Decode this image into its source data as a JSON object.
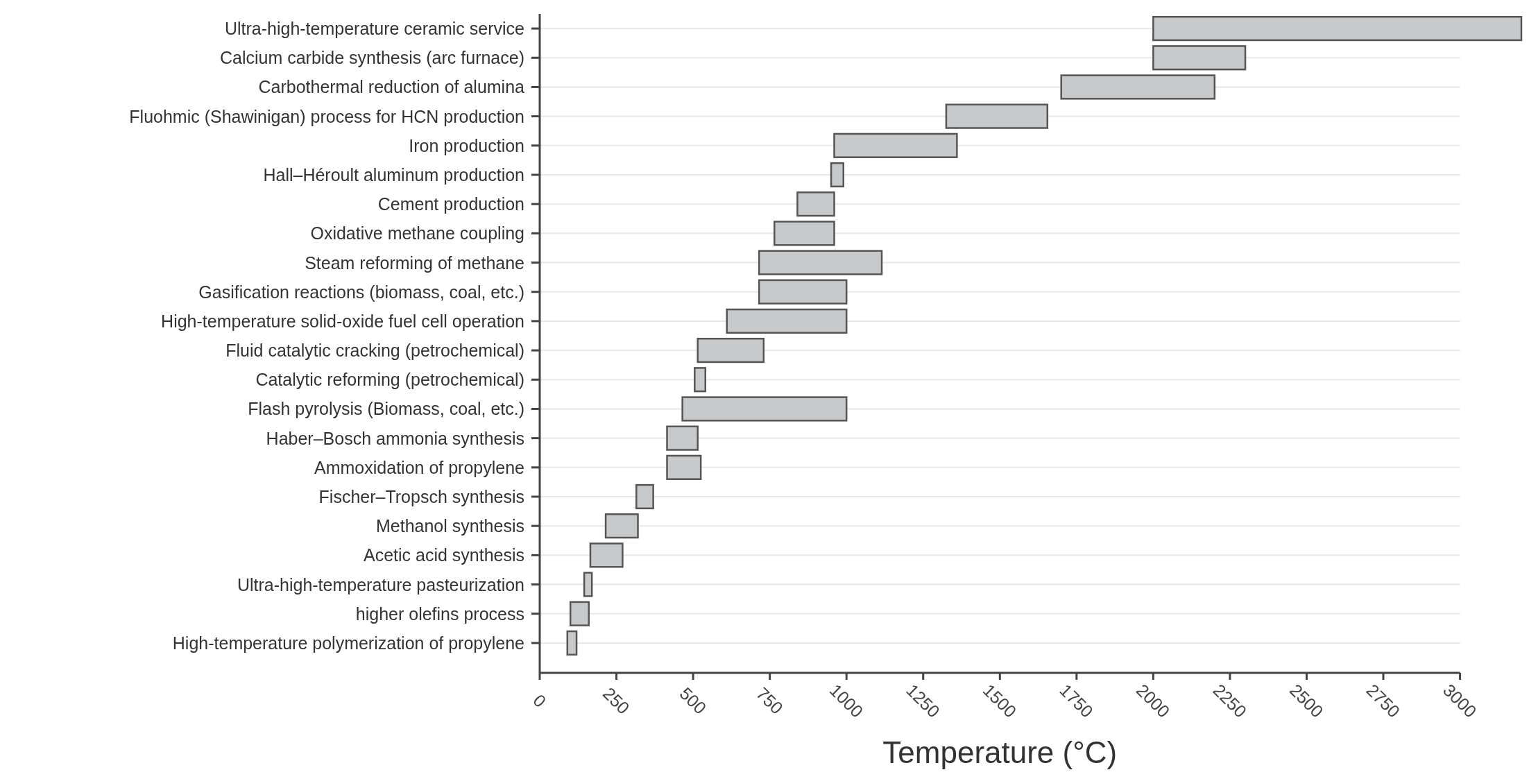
{
  "chart_data": {
    "type": "bar",
    "orientation": "horizontal",
    "xlabel": "Temperature (°C)",
    "categories": [
      "Ultra-high-temperature ceramic service",
      "Calcium carbide synthesis (arc furnace)",
      "Carbothermal reduction of alumina",
      "Fluohmic (Shawinigan) process for HCN production",
      "Iron production",
      "Hall–Héroult aluminum production",
      "Cement production",
      "Oxidative methane coupling",
      "Steam reforming of methane",
      "Gasification reactions (biomass, coal, etc.)",
      "High-temperature solid-oxide fuel cell operation",
      "Fluid catalytic cracking (petrochemical)",
      "Catalytic reforming (petrochemical)",
      "Flash pyrolysis (Biomass, coal, etc.)",
      "Haber–Bosch ammonia synthesis",
      "Ammoxidation of propylene",
      "Fischer–Tropsch synthesis",
      "Methanol synthesis",
      "Acetic acid synthesis",
      "Ultra-high-temperature pasteurization",
      "higher olefins process",
      "High-temperature polymerization of propylene"
    ],
    "base": [
      2000,
      2000,
      1700,
      1325,
      960,
      950,
      840,
      765,
      715,
      715,
      610,
      515,
      505,
      465,
      415,
      415,
      315,
      215,
      165,
      145,
      100,
      90
    ],
    "values": [
      1200,
      300,
      500,
      330,
      400,
      40,
      120,
      195,
      400,
      285,
      390,
      215,
      35,
      535,
      100,
      110,
      55,
      105,
      105,
      25,
      60,
      30
    ],
    "color": "#c8c9cb",
    "xlim": [
      0,
      3200
    ],
    "xticks": [
      0,
      250,
      500,
      750,
      1000,
      1250,
      1500,
      1750,
      2000,
      2250,
      2500,
      2750,
      3000
    ],
    "grid": "y"
  }
}
